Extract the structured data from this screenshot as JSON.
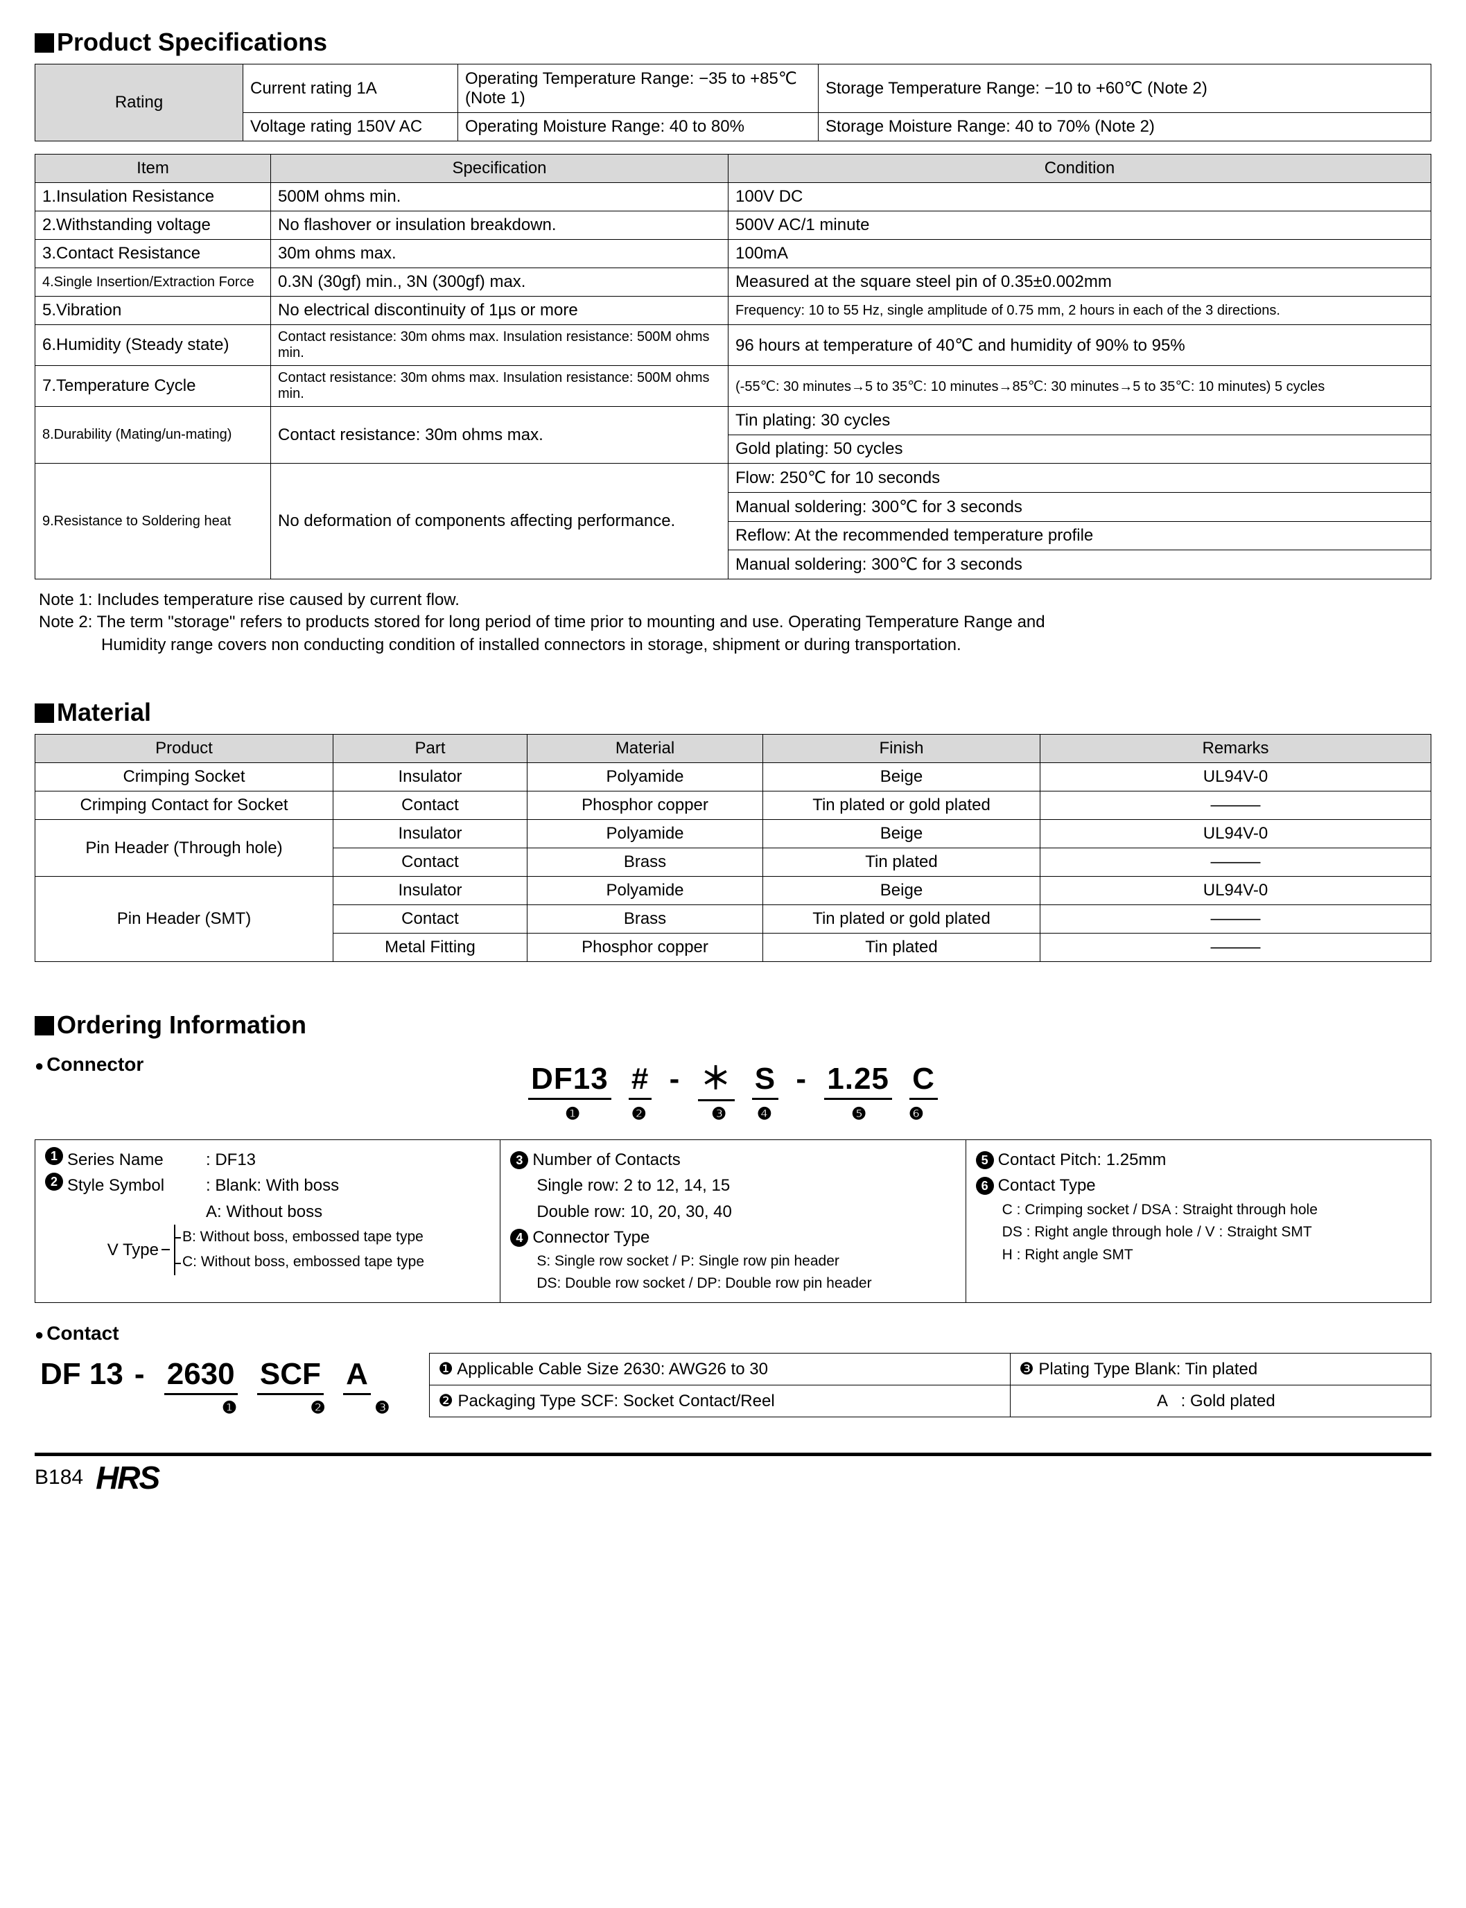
{
  "sections": {
    "spec_title": "Product Specifications",
    "material_title": "Material",
    "ordering_title": "Ordering Information"
  },
  "rating": {
    "header": "Rating",
    "cells": {
      "current": "Current rating  1A",
      "voltage": "Voltage rating  150V AC",
      "op_temp": "Operating Temperature Range: −35 to +85℃ (Note 1)",
      "op_moist": "Operating Moisture Range: 40 to 80%",
      "st_temp": "Storage Temperature Range: −10 to +60℃ (Note 2)",
      "st_moist": "Storage Moisture Range: 40 to 70%        (Note 2)"
    }
  },
  "spec_headers": {
    "item": "Item",
    "spec": "Specification",
    "cond": "Condition"
  },
  "spec_rows": [
    {
      "item": "1.Insulation Resistance",
      "spec": "500M ohms min.",
      "cond": "100V DC"
    },
    {
      "item": "2.Withstanding voltage",
      "spec": "No flashover or insulation breakdown.",
      "cond": "500V AC/1 minute"
    },
    {
      "item": "3.Contact Resistance",
      "spec": "30m ohms max.",
      "cond": "100mA"
    },
    {
      "item": "4.Single Insertion/Extraction Force",
      "item_sm": true,
      "spec": "0.3N (30gf) min., 3N (300gf) max.",
      "cond": "Measured at the square steel pin of 0.35±0.002mm"
    },
    {
      "item": "5.Vibration",
      "spec": "No electrical discontinuity of 1µs or more",
      "cond": "Frequency: 10 to 55 Hz, single amplitude of 0.75 mm, 2 hours in each of the 3 directions.",
      "cond_sm": true
    },
    {
      "item": "6.Humidity (Steady state)",
      "spec": "Contact resistance: 30m ohms max. Insulation resistance: 500M ohms min.",
      "spec_sm": true,
      "cond": "96 hours at temperature of 40℃ and humidity of 90% to 95%"
    },
    {
      "item": "7.Temperature Cycle",
      "spec": "Contact resistance: 30m ohms max. Insulation resistance: 500M ohms min.",
      "spec_sm": true,
      "cond": "(-55℃: 30 minutes→5 to 35℃: 10 minutes→85℃: 30 minutes→5 to 35℃: 10 minutes) 5 cycles",
      "cond_sm": true
    },
    {
      "item": "8.Durability (Mating/un-mating)",
      "item_sm": true,
      "spec": "Contact resistance: 30m ohms max.",
      "cond": "Tin plating: 30 cycles",
      "cond2": "Gold plating: 50 cycles"
    },
    {
      "item": "9.Resistance to Soldering heat",
      "item_sm": true,
      "spec": "No deformation of components affecting performance.",
      "cond": "Flow: 250℃ for 10 seconds",
      "cond2": "Manual soldering: 300℃ for 3 seconds",
      "cond3": "Reflow: At the recommended temperature profile",
      "cond4": "Manual soldering: 300℃ for 3 seconds"
    }
  ],
  "notes": {
    "n1": "Note 1: Includes temperature rise caused by current flow.",
    "n2a": "Note 2: The term \"storage\" refers to products stored for long period of time prior to mounting and use. Operating Temperature Range and",
    "n2b": "Humidity range covers non conducting condition of installed connectors in storage, shipment or during transportation."
  },
  "mat_headers": {
    "product": "Product",
    "part": "Part",
    "material": "Material",
    "finish": "Finish",
    "remarks": "Remarks"
  },
  "mat_rows": [
    {
      "product": "Crimping Socket",
      "part": "Insulator",
      "material": "Polyamide",
      "finish": "Beige",
      "remarks": "UL94V-0"
    },
    {
      "product": "Crimping Contact for Socket",
      "part": "Contact",
      "material": "Phosphor copper",
      "finish": "Tin plated or gold plated",
      "remarks": "―――"
    },
    {
      "product": "Pin Header (Through hole)",
      "rowspan": 2,
      "part": "Insulator",
      "material": "Polyamide",
      "finish": "Beige",
      "remarks": "UL94V-0"
    },
    {
      "part": "Contact",
      "material": "Brass",
      "finish": "Tin plated",
      "remarks": "―――"
    },
    {
      "product": "Pin Header (SMT)",
      "rowspan": 3,
      "part": "Insulator",
      "material": "Polyamide",
      "finish": "Beige",
      "remarks": "UL94V-0"
    },
    {
      "part": "Contact",
      "material": "Brass",
      "finish": "Tin plated or gold plated",
      "remarks": "―――"
    },
    {
      "part": "Metal Fitting",
      "material": "Phosphor copper",
      "finish": "Tin plated",
      "remarks": "―――"
    }
  ],
  "connector": {
    "sub": "Connector",
    "segs": [
      "DF13",
      "#",
      "＊",
      "S",
      "1.25",
      "C"
    ],
    "seps": [
      "",
      "",
      "-",
      "",
      "-",
      ""
    ],
    "nums": [
      "❶",
      "❷",
      "❸",
      "❹",
      "❺",
      "❻"
    ]
  },
  "conn_desc": {
    "c1": {
      "l1_lab": "Series Name",
      "l1_val": ": DF13",
      "l2_lab": "Style Symbol",
      "l2_val": ": Blank: With boss",
      "l3": "A: Without boss",
      "vt": "V Type",
      "vb": "B: Without boss, embossed tape type",
      "vc": "C: Without boss, embossed tape type"
    },
    "c2": {
      "l1": "Number of Contacts",
      "l2": "Single row: 2 to 12, 14, 15",
      "l3": "Double row: 10, 20, 30, 40",
      "l4": "Connector Type",
      "l5": "S: Single row socket / P: Single row pin header",
      "l6": "DS: Double row socket / DP: Double row pin header"
    },
    "c3": {
      "l1": "Contact Pitch: 1.25mm",
      "l2": "Contact Type",
      "l3": "C : Crimping socket / DSA : Straight through hole",
      "l4": "DS : Right angle through hole / V : Straight SMT",
      "l5": "H : Right angle SMT"
    }
  },
  "contact": {
    "sub": "Contact",
    "pref": "DF 13",
    "segs": [
      "2630",
      "SCF",
      "A"
    ],
    "nums": [
      "❶",
      "❷",
      "❸"
    ],
    "table": {
      "r1c1": "❶ Applicable Cable Size  2630: AWG26 to 30",
      "r1c2": "❸ Plating Type    Blank: Tin plated",
      "r2c1": "❷ Packaging Type  SCF: Socket Contact/Reel",
      "r2c2": "                              A   : Gold plated"
    }
  },
  "footer": {
    "page": "B184",
    "logo": "HRS"
  },
  "colors": {
    "header_bg": "#d9d9d9",
    "text": "#000000",
    "bg": "#ffffff"
  }
}
